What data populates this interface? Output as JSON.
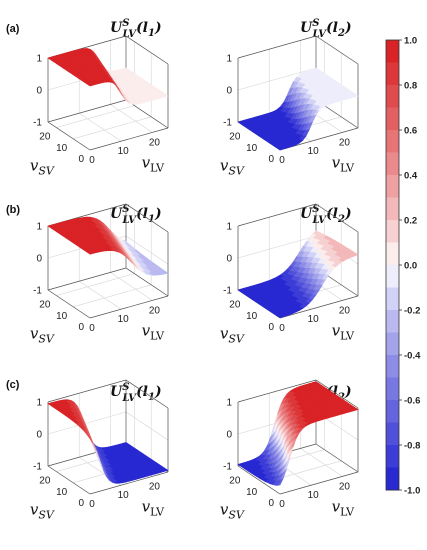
{
  "panel_labels": [
    "(a)",
    "(b)",
    "(c)"
  ],
  "chart_data": [
    {
      "type": "surface",
      "row": "(a)",
      "title": "U^S_LV(l_1)",
      "title_base": "U",
      "title_sup": "S",
      "title_sub": "LV",
      "title_arg": "(l",
      "title_arg_sub": "1",
      "title_close": ")",
      "xlabel": "v",
      "xlabel_sub": "LV",
      "ylabel": "v",
      "ylabel_sub": "SV",
      "xticks": [
        0,
        10,
        20
      ],
      "yticks": [
        0,
        10,
        20
      ],
      "zticks": [
        -1,
        0,
        1
      ],
      "xlim": [
        0,
        25
      ],
      "ylim": [
        0,
        25
      ],
      "zlim": [
        -1,
        1
      ],
      "shape": "sigmoid",
      "sign": 1,
      "steepness": 0.9,
      "offset": 0.5,
      "sv_shift": 0.0
    },
    {
      "type": "surface",
      "row": "(a)",
      "title": "U^S_LV(l_2)",
      "title_base": "U",
      "title_sup": "S",
      "title_sub": "LV",
      "title_arg": "(l",
      "title_arg_sub": "2",
      "title_close": ")",
      "xlabel": "v",
      "xlabel_sub": "LV",
      "ylabel": "v",
      "ylabel_sub": "SV",
      "xticks": [
        0,
        10,
        20
      ],
      "yticks": [
        0,
        10,
        20
      ],
      "zticks": [
        -1,
        0,
        1
      ],
      "xlim": [
        0,
        25
      ],
      "ylim": [
        0,
        25
      ],
      "zlim": [
        -1,
        1
      ],
      "shape": "sigmoid",
      "sign": -1,
      "steepness": 0.9,
      "offset": 0.5,
      "sv_shift": 0.0
    },
    {
      "type": "surface",
      "row": "(b)",
      "title": "U^S_LV(l_1)",
      "title_base": "U",
      "title_sup": "S",
      "title_sub": "LV",
      "title_arg": "(l",
      "title_arg_sub": "1",
      "title_close": ")",
      "xlabel": "v",
      "xlabel_sub": "LV",
      "ylabel": "v",
      "ylabel_sub": "SV",
      "xticks": [
        0,
        10,
        20
      ],
      "yticks": [
        0,
        10,
        20
      ],
      "zticks": [
        -1,
        0,
        1
      ],
      "xlim": [
        0,
        25
      ],
      "ylim": [
        0,
        25
      ],
      "zlim": [
        -1,
        1
      ],
      "shape": "sigmoid",
      "sign": 1,
      "steepness": 0.45,
      "offset": 0.35,
      "sv_shift": 0.35
    },
    {
      "type": "surface",
      "row": "(b)",
      "title": "U^S_LV(l_2)",
      "title_base": "U",
      "title_sup": "S",
      "title_sub": "LV",
      "title_arg": "(l",
      "title_arg_sub": "2",
      "title_close": ")",
      "xlabel": "v",
      "xlabel_sub": "LV",
      "ylabel": "v",
      "ylabel_sub": "SV",
      "xticks": [
        0,
        10,
        20
      ],
      "yticks": [
        0,
        10,
        20
      ],
      "zticks": [
        -1,
        0,
        1
      ],
      "xlim": [
        0,
        25
      ],
      "ylim": [
        0,
        25
      ],
      "zlim": [
        -1,
        1
      ],
      "shape": "sigmoid",
      "sign": -1,
      "steepness": 0.45,
      "offset": 0.35,
      "sv_shift": 0.35
    },
    {
      "type": "surface",
      "row": "(c)",
      "title": "U^S_LV(l_1)",
      "title_base": "U",
      "title_sup": "S",
      "title_sub": "LV",
      "title_arg": "(l",
      "title_arg_sub": "1",
      "title_close": ")",
      "xlabel": "v",
      "xlabel_sub": "LV",
      "ylabel": "v",
      "ylabel_sub": "SV",
      "xticks": [
        0,
        10,
        20
      ],
      "yticks": [
        0,
        10,
        20
      ],
      "zticks": [
        -1,
        0,
        1
      ],
      "xlim": [
        0,
        25
      ],
      "ylim": [
        0,
        25
      ],
      "zlim": [
        -1,
        1
      ],
      "shape": "diagonal",
      "sign": 1,
      "steepness": 0.6,
      "offset": 0.0,
      "sv_shift": 0.0
    },
    {
      "type": "surface",
      "row": "(c)",
      "title": "U^S_LV(l_2)",
      "title_base": "U",
      "title_sup": "S",
      "title_sub": "LV",
      "title_arg": "(l",
      "title_arg_sub": "2",
      "title_close": ")",
      "xlabel": "v",
      "xlabel_sub": "LV",
      "ylabel": "v",
      "ylabel_sub": "SV",
      "xticks": [
        0,
        10,
        20
      ],
      "yticks": [
        0,
        10,
        20
      ],
      "zticks": [
        -1,
        0,
        1
      ],
      "xlim": [
        0,
        25
      ],
      "ylim": [
        0,
        25
      ],
      "zlim": [
        -1,
        1
      ],
      "shape": "diagonal",
      "sign": -1,
      "steepness": 0.6,
      "offset": 0.0,
      "sv_shift": 0.0
    }
  ],
  "colorbar": {
    "range": [
      -1.0,
      1.0
    ],
    "ticks": [
      "1.0",
      "0.8",
      "0.6",
      "0.4",
      "0.2",
      "0.0",
      "-0.2",
      "-0.4",
      "-0.6",
      "-0.8",
      "-1.0"
    ],
    "levels": 20,
    "colors": {
      "high": "#d7191c",
      "mid": "#ffffff",
      "low": "#1f1fd0"
    }
  }
}
